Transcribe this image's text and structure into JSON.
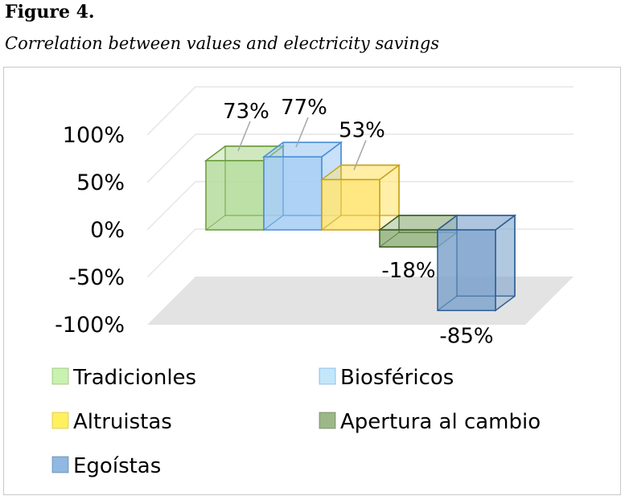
{
  "figure": {
    "label": "Figure 4.",
    "caption": "Correlation between values and electricity savings"
  },
  "chart_data": {
    "type": "bar",
    "categories": [
      "Tradicionles",
      "Biosféricos",
      "Altruistas",
      "Apertura al cambio",
      "Egoístas"
    ],
    "values": [
      73,
      77,
      53,
      -18,
      -85
    ],
    "value_labels": [
      "73%",
      "77%",
      "53%",
      "-18%",
      "-85%"
    ],
    "y_ticks": [
      "-100%",
      "-50%",
      "0%",
      "50%",
      "100%"
    ],
    "y_tick_values": [
      -100,
      -50,
      0,
      50,
      100
    ],
    "ylim": [
      -100,
      100
    ],
    "grid": true,
    "three_d": true,
    "legend_position": "bottom",
    "colors": {
      "fill": [
        "#b5dc9c",
        "#a5ccf4",
        "#ffe574",
        "#93b07c",
        "#80a5cd"
      ],
      "stroke": [
        "#6a9a3a",
        "#4c8ed4",
        "#c9a21a",
        "#3d5e27",
        "#2e5f94"
      ],
      "legend": [
        "#c9f2b0",
        "#c3e6fb",
        "#fff05e",
        "#9cb889",
        "#91b8e2"
      ]
    }
  }
}
